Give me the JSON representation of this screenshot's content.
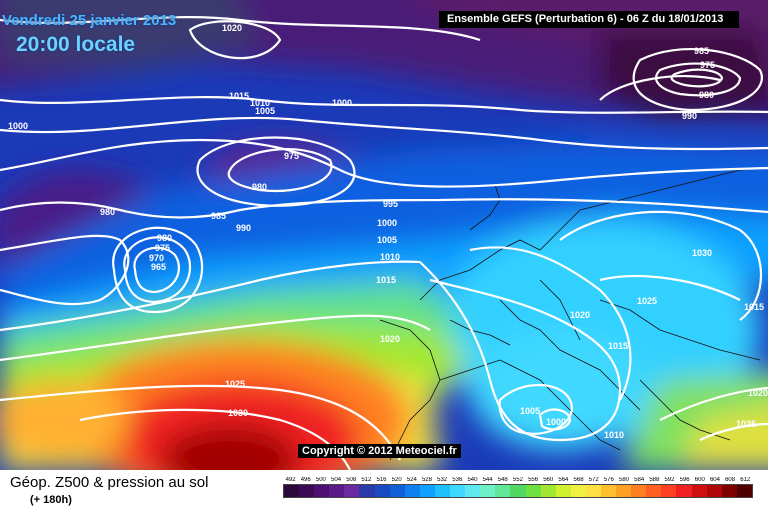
{
  "header": {
    "date": "Vendredi 25 janvier 2013",
    "time": "20:00 locale",
    "ensemble": "Ensemble GEFS (Perturbation 6) - 06 Z du 18/01/2013"
  },
  "copyright": "Copyright © 2012 Meteociel.fr",
  "legend": {
    "title": "Géop. Z500 & pression au sol",
    "subtitle": "(+ 180h)",
    "scale_values": [
      "492",
      "496",
      "500",
      "504",
      "508",
      "512",
      "516",
      "520",
      "524",
      "528",
      "532",
      "536",
      "540",
      "544",
      "548",
      "552",
      "556",
      "560",
      "564",
      "568",
      "572",
      "576",
      "580",
      "584",
      "588",
      "592",
      "596",
      "600",
      "604",
      "608",
      "612"
    ],
    "scale_colors": [
      "#2a0a3a",
      "#3c0a55",
      "#4b1070",
      "#5a1a88",
      "#6a2aa0",
      "#2a3aa8",
      "#1a4ac0",
      "#1060d8",
      "#1080f0",
      "#10a0ff",
      "#20c0ff",
      "#40d8ff",
      "#60e8f0",
      "#70f0c8",
      "#60e898",
      "#50d860",
      "#70e040",
      "#a0e830",
      "#d0f030",
      "#f0f040",
      "#ffe040",
      "#ffc030",
      "#ffa020",
      "#ff8020",
      "#ff6020",
      "#ff4020",
      "#f02020",
      "#d01010",
      "#b00808",
      "#800000",
      "#500000"
    ]
  },
  "isobar_labels": [
    "1020",
    "1015",
    "1010",
    "1005",
    "1000",
    "1000",
    "975",
    "980",
    "980",
    "985",
    "990",
    "995",
    "1000",
    "1005",
    "1010",
    "1015",
    "980",
    "975",
    "970",
    "965",
    "1020",
    "1025",
    "1030",
    "985",
    "975",
    "980",
    "990",
    "1030",
    "1025",
    "1020",
    "1015",
    "1005",
    "1000",
    "1010",
    "1025",
    "1020",
    "1015"
  ]
}
